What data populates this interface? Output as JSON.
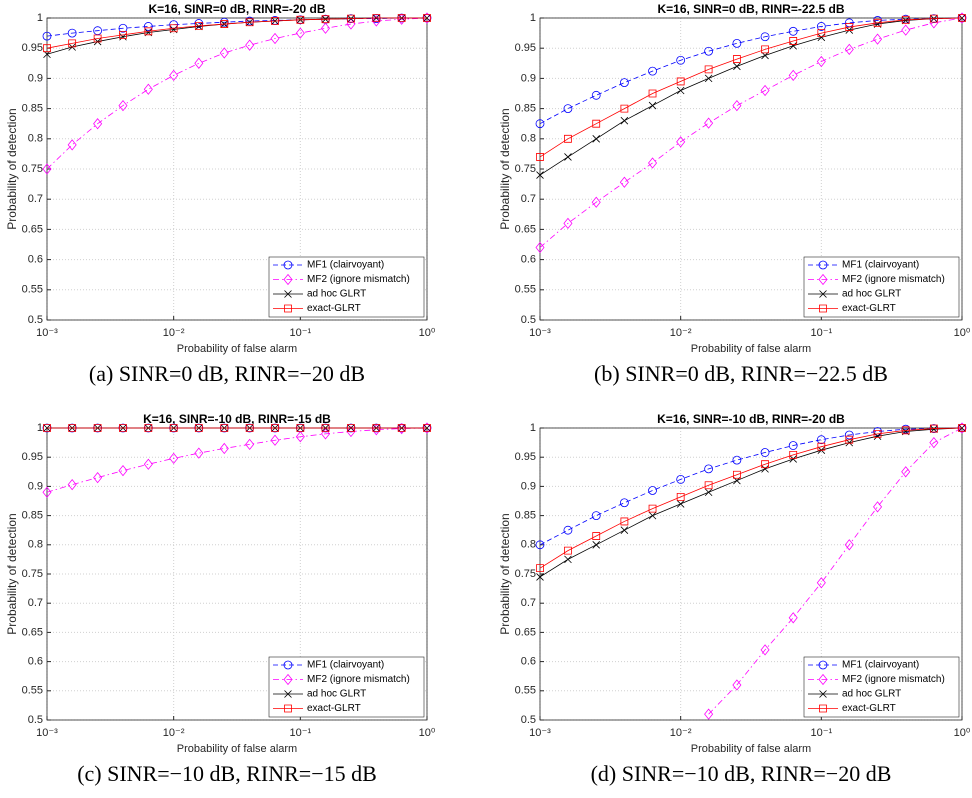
{
  "chart_data": [
    {
      "type": "line",
      "title": "K=16, SINR=0 dB, RINR=-20 dB",
      "caption": "(a) SINR=0 dB, RINR=−20 dB",
      "xlabel": "Probability of false alarm",
      "ylabel": "Probability of detection",
      "xscale": "log",
      "grid": true,
      "legend": "lower right",
      "xlim": [
        0.001,
        1
      ],
      "ylim": [
        0.5,
        1
      ],
      "xticks": [
        {
          "value": 0.001,
          "label": "10⁻³"
        },
        {
          "value": 0.01,
          "label": "10⁻²"
        },
        {
          "value": 0.1,
          "label": "10⁻¹"
        },
        {
          "value": 1,
          "label": "10⁰"
        }
      ],
      "yticks": [
        0.5,
        0.55,
        0.6,
        0.65,
        0.7,
        0.75,
        0.8,
        0.85,
        0.9,
        0.95,
        1
      ],
      "x": [
        0.001,
        0.00158,
        0.00251,
        0.00398,
        0.00631,
        0.01,
        0.0158,
        0.0251,
        0.0398,
        0.0631,
        0.1,
        0.158,
        0.251,
        0.398,
        0.631,
        1
      ],
      "series": [
        {
          "name": "MF1 (clairvoyant)",
          "color": "#0000ff",
          "marker": "circle",
          "linestyle": "dashed",
          "values": [
            0.97,
            0.975,
            0.979,
            0.983,
            0.986,
            0.989,
            0.991,
            0.993,
            0.995,
            0.996,
            0.997,
            0.998,
            0.999,
            0.999,
            1,
            1
          ]
        },
        {
          "name": "MF2 (ignore mismatch)",
          "color": "#ff00ff",
          "marker": "diamond",
          "linestyle": "dashdot",
          "values": [
            0.75,
            0.79,
            0.825,
            0.855,
            0.882,
            0.905,
            0.925,
            0.942,
            0.955,
            0.966,
            0.975,
            0.983,
            0.99,
            0.995,
            0.998,
            1
          ]
        },
        {
          "name": "ad hoc GLRT",
          "color": "#000000",
          "marker": "x",
          "linestyle": "solid",
          "values": [
            0.94,
            0.952,
            0.961,
            0.969,
            0.976,
            0.981,
            0.986,
            0.99,
            0.993,
            0.995,
            0.997,
            0.998,
            0.999,
            1,
            1,
            1
          ]
        },
        {
          "name": "exact-GLRT",
          "color": "#ff0000",
          "marker": "square",
          "linestyle": "solid",
          "values": [
            0.95,
            0.958,
            0.966,
            0.972,
            0.978,
            0.983,
            0.987,
            0.99,
            0.993,
            0.995,
            0.997,
            0.998,
            0.999,
            1,
            1,
            1
          ]
        }
      ]
    },
    {
      "type": "line",
      "title": "K=16, SINR=0 dB, RINR=-22.5 dB",
      "caption": "(b) SINR=0 dB, RINR=−22.5 dB",
      "xlabel": "Probability of false alarm",
      "ylabel": "Probability of detection",
      "xscale": "log",
      "grid": true,
      "legend": "lower right",
      "xlim": [
        0.001,
        1
      ],
      "ylim": [
        0.5,
        1
      ],
      "xticks": [
        {
          "value": 0.001,
          "label": "10⁻³"
        },
        {
          "value": 0.01,
          "label": "10⁻²"
        },
        {
          "value": 0.1,
          "label": "10⁻¹"
        },
        {
          "value": 1,
          "label": "10⁰"
        }
      ],
      "yticks": [
        0.5,
        0.55,
        0.6,
        0.65,
        0.7,
        0.75,
        0.8,
        0.85,
        0.9,
        0.95,
        1
      ],
      "x": [
        0.001,
        0.00158,
        0.00251,
        0.00398,
        0.00631,
        0.01,
        0.0158,
        0.0251,
        0.0398,
        0.0631,
        0.1,
        0.158,
        0.251,
        0.398,
        0.631,
        1
      ],
      "series": [
        {
          "name": "MF1 (clairvoyant)",
          "color": "#0000ff",
          "marker": "circle",
          "linestyle": "dashed",
          "values": [
            0.825,
            0.85,
            0.872,
            0.893,
            0.912,
            0.93,
            0.945,
            0.958,
            0.969,
            0.978,
            0.986,
            0.992,
            0.996,
            0.998,
            0.999,
            1
          ]
        },
        {
          "name": "MF2 (ignore mismatch)",
          "color": "#ff00ff",
          "marker": "diamond",
          "linestyle": "dashdot",
          "values": [
            0.62,
            0.66,
            0.695,
            0.728,
            0.76,
            0.795,
            0.826,
            0.855,
            0.88,
            0.905,
            0.928,
            0.948,
            0.965,
            0.98,
            0.992,
            1
          ]
        },
        {
          "name": "ad hoc GLRT",
          "color": "#000000",
          "marker": "x",
          "linestyle": "solid",
          "values": [
            0.74,
            0.77,
            0.8,
            0.83,
            0.855,
            0.88,
            0.9,
            0.92,
            0.938,
            0.954,
            0.968,
            0.98,
            0.99,
            0.996,
            0.999,
            1
          ]
        },
        {
          "name": "exact-GLRT",
          "color": "#ff0000",
          "marker": "square",
          "linestyle": "solid",
          "values": [
            0.77,
            0.8,
            0.825,
            0.85,
            0.875,
            0.895,
            0.915,
            0.932,
            0.948,
            0.962,
            0.975,
            0.985,
            0.992,
            0.997,
            0.999,
            1
          ]
        }
      ]
    },
    {
      "type": "line",
      "title": "K=16, SINR=-10 dB, RINR=-15 dB",
      "caption": "(c) SINR=−10 dB, RINR=−15 dB",
      "xlabel": "Probability of false alarm",
      "ylabel": "Probability of detection",
      "xscale": "log",
      "grid": true,
      "legend": "lower right",
      "xlim": [
        0.001,
        1
      ],
      "ylim": [
        0.5,
        1
      ],
      "xticks": [
        {
          "value": 0.001,
          "label": "10⁻³"
        },
        {
          "value": 0.01,
          "label": "10⁻²"
        },
        {
          "value": 0.1,
          "label": "10⁻¹"
        },
        {
          "value": 1,
          "label": "10⁰"
        }
      ],
      "yticks": [
        0.5,
        0.55,
        0.6,
        0.65,
        0.7,
        0.75,
        0.8,
        0.85,
        0.9,
        0.95,
        1
      ],
      "x": [
        0.001,
        0.00158,
        0.00251,
        0.00398,
        0.00631,
        0.01,
        0.0158,
        0.0251,
        0.0398,
        0.0631,
        0.1,
        0.158,
        0.251,
        0.398,
        0.631,
        1
      ],
      "series": [
        {
          "name": "MF1 (clairvoyant)",
          "color": "#0000ff",
          "marker": "circle",
          "linestyle": "dashed",
          "values": [
            1,
            1,
            1,
            1,
            1,
            1,
            1,
            1,
            1,
            1,
            1,
            1,
            1,
            1,
            1,
            1
          ]
        },
        {
          "name": "MF2 (ignore mismatch)",
          "color": "#ff00ff",
          "marker": "diamond",
          "linestyle": "dashdot",
          "values": [
            0.89,
            0.903,
            0.915,
            0.927,
            0.938,
            0.948,
            0.957,
            0.965,
            0.972,
            0.979,
            0.985,
            0.99,
            0.994,
            0.997,
            0.999,
            1
          ]
        },
        {
          "name": "ad hoc GLRT",
          "color": "#000000",
          "marker": "x",
          "linestyle": "solid",
          "values": [
            1,
            1,
            1,
            1,
            1,
            1,
            1,
            1,
            1,
            1,
            1,
            1,
            1,
            1,
            1,
            1
          ]
        },
        {
          "name": "exact-GLRT",
          "color": "#ff0000",
          "marker": "square",
          "linestyle": "solid",
          "values": [
            1,
            1,
            1,
            1,
            1,
            1,
            1,
            1,
            1,
            1,
            1,
            1,
            1,
            1,
            1,
            1
          ]
        }
      ]
    },
    {
      "type": "line",
      "title": "K=16, SINR=-10 dB, RINR=-20 dB",
      "caption": "(d) SINR=−10 dB, RINR=−20 dB",
      "xlabel": "Probability of false alarm",
      "ylabel": "Probability of detection",
      "xscale": "log",
      "grid": true,
      "legend": "lower right",
      "xlim": [
        0.001,
        1
      ],
      "ylim": [
        0.5,
        1
      ],
      "xticks": [
        {
          "value": 0.001,
          "label": "10⁻³"
        },
        {
          "value": 0.01,
          "label": "10⁻²"
        },
        {
          "value": 0.1,
          "label": "10⁻¹"
        },
        {
          "value": 1,
          "label": "10⁰"
        }
      ],
      "yticks": [
        0.5,
        0.55,
        0.6,
        0.65,
        0.7,
        0.75,
        0.8,
        0.85,
        0.9,
        0.95,
        1
      ],
      "x": [
        0.001,
        0.00158,
        0.00251,
        0.00398,
        0.00631,
        0.01,
        0.0158,
        0.0251,
        0.0398,
        0.0631,
        0.1,
        0.158,
        0.251,
        0.398,
        0.631,
        1
      ],
      "series": [
        {
          "name": "MF1 (clairvoyant)",
          "color": "#0000ff",
          "marker": "circle",
          "linestyle": "dashed",
          "values": [
            0.8,
            0.825,
            0.85,
            0.872,
            0.893,
            0.912,
            0.93,
            0.945,
            0.958,
            0.97,
            0.98,
            0.988,
            0.994,
            0.998,
            0.999,
            1
          ]
        },
        {
          "name": "MF2 (ignore mismatch)",
          "color": "#ff00ff",
          "marker": "diamond",
          "linestyle": "dashdot",
          "values": [
            null,
            null,
            null,
            null,
            null,
            null,
            0.51,
            0.56,
            0.62,
            0.675,
            0.735,
            0.8,
            0.865,
            0.925,
            0.975,
            1
          ]
        },
        {
          "name": "ad hoc GLRT",
          "color": "#000000",
          "marker": "x",
          "linestyle": "solid",
          "values": [
            0.745,
            0.775,
            0.8,
            0.825,
            0.85,
            0.87,
            0.89,
            0.91,
            0.93,
            0.947,
            0.962,
            0.975,
            0.986,
            0.994,
            0.998,
            1
          ]
        },
        {
          "name": "exact-GLRT",
          "color": "#ff0000",
          "marker": "square",
          "linestyle": "solid",
          "values": [
            0.76,
            0.79,
            0.815,
            0.84,
            0.862,
            0.882,
            0.902,
            0.92,
            0.938,
            0.954,
            0.968,
            0.98,
            0.99,
            0.996,
            0.999,
            1
          ]
        }
      ]
    }
  ]
}
